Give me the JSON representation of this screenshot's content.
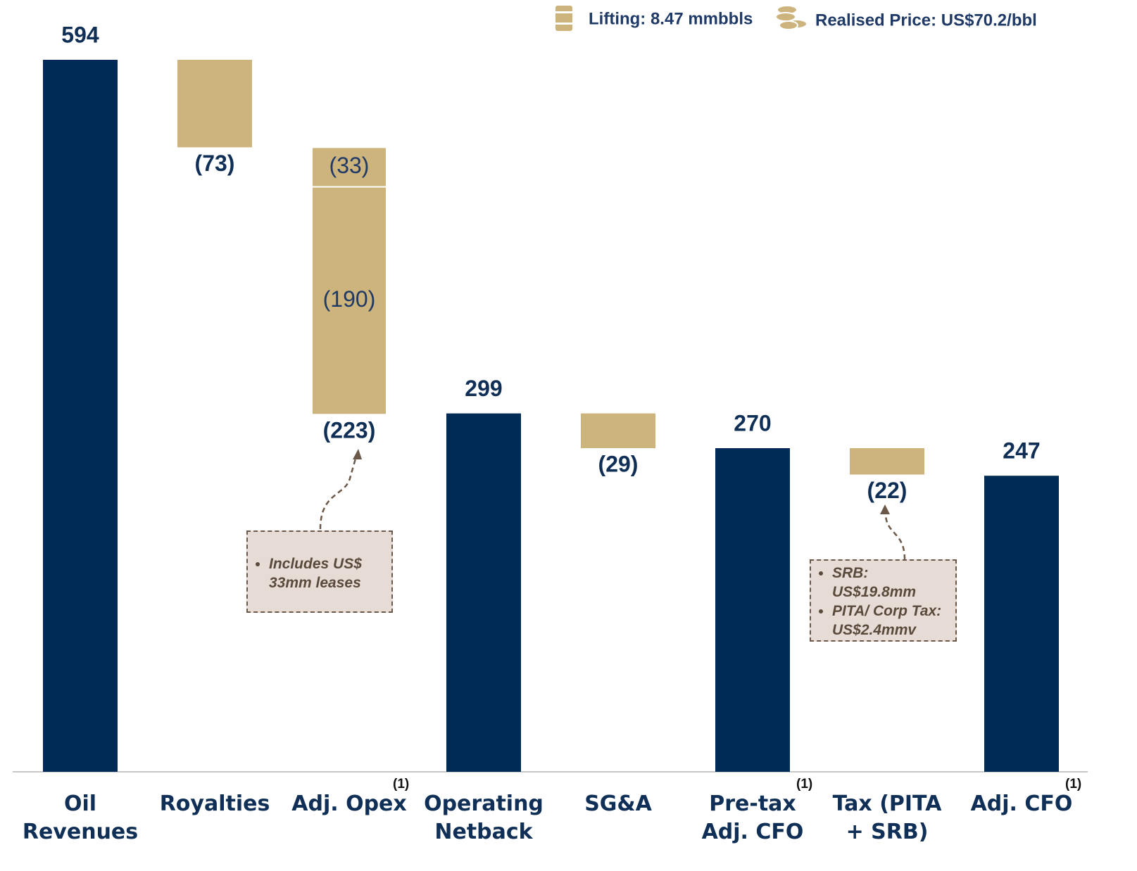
{
  "chart_data": {
    "type": "waterfall",
    "legend_items": [
      "Lifting: 8.47 mmbbls",
      "Realised Price: US$70.2/bbl"
    ],
    "categories": [
      "Oil Revenues",
      "Royalties",
      "Adj. Opex",
      "Operating Netback",
      "SG&A",
      "Pre-tax Adj. CFO",
      "Tax (PITA + SRB)",
      "Adj. CFO"
    ],
    "category_notes": [
      null,
      null,
      "(1)",
      null,
      null,
      "(1)",
      null,
      "(1)"
    ],
    "measure": [
      "total",
      "relative",
      "relative",
      "total",
      "relative",
      "total",
      "relative",
      "total"
    ],
    "values": [
      594,
      -73,
      -223,
      299,
      -29,
      270,
      -22,
      247
    ],
    "value_labels": [
      "594",
      "(73)",
      "(223)",
      "299",
      "(29)",
      "270",
      "(22)",
      "247"
    ],
    "opex_breakdown": {
      "values": [
        -33,
        -190
      ],
      "value_labels": [
        "(33)",
        "(190)"
      ]
    },
    "colors": {
      "total": "#002b57",
      "relative": "#cdb37c"
    },
    "annotations": [
      {
        "items": [
          "Includes US$ 33mm leases"
        ]
      },
      {
        "items": [
          "SRB: US$19.8mm",
          "PITA/ Corp Tax: US$2.4mmv"
        ]
      }
    ]
  }
}
